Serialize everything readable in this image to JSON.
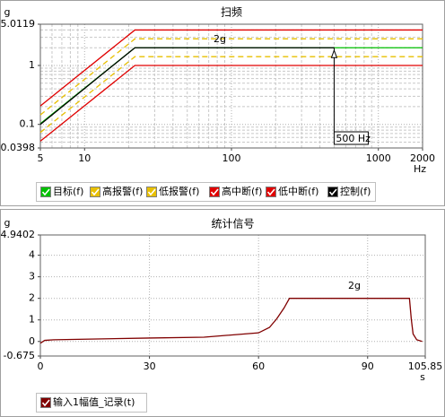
{
  "chart_data": [
    {
      "type": "line",
      "title": "扫频",
      "x_label": "Hz",
      "y_label": "g",
      "xscale": "log",
      "yscale": "log",
      "xlim": [
        5,
        2000
      ],
      "ylim": [
        0.0398,
        5.0119
      ],
      "xticks": [
        5,
        10,
        100,
        1000,
        2000
      ],
      "yticks": [
        0.0398,
        0.1,
        1,
        5.0119
      ],
      "xgrid": [
        6,
        7,
        8,
        9,
        20,
        30,
        40,
        50,
        60,
        70,
        80,
        90,
        200,
        300,
        400,
        500,
        600,
        700,
        800,
        900
      ],
      "ygrid": [
        0.05,
        0.06,
        0.07,
        0.08,
        0.09,
        0.2,
        0.3,
        0.4,
        0.5,
        0.6,
        0.7,
        0.8,
        0.9,
        2,
        3,
        4
      ],
      "grid": true,
      "series": [
        {
          "name": "目标(f)",
          "color": "#00c000",
          "x": [
            5,
            22,
            2000
          ],
          "values": [
            0.103,
            2,
            2
          ]
        },
        {
          "name": "高报警(f)",
          "color": "#e8c000",
          "dash": true,
          "x": [
            5,
            22,
            2000
          ],
          "values": [
            0.145,
            2.83,
            2.83
          ]
        },
        {
          "name": "低报警(f)",
          "color": "#e8c000",
          "dash": true,
          "x": [
            5,
            22,
            2000
          ],
          "values": [
            0.073,
            1.41,
            1.41
          ]
        },
        {
          "name": "高中断(f)",
          "color": "#e00000",
          "x": [
            5,
            22,
            2000
          ],
          "values": [
            0.206,
            4,
            4
          ]
        },
        {
          "name": "低中断(f)",
          "color": "#e00000",
          "x": [
            5,
            22,
            2000
          ],
          "values": [
            0.052,
            1,
            1
          ]
        },
        {
          "name": "控制(f)",
          "color": "#000000",
          "x": [
            5,
            22,
            500
          ],
          "values": [
            0.1,
            2,
            2
          ]
        }
      ],
      "annotations": [
        {
          "text": "2g"
        },
        {
          "text": "500 Hz",
          "x": 500
        }
      ]
    },
    {
      "type": "line",
      "title": "统计信号",
      "x_label": "s",
      "y_label": "g",
      "xlim": [
        0,
        105.85
      ],
      "ylim": [
        -0.675,
        4.9402
      ],
      "xticks": [
        0,
        30,
        60,
        90,
        105.85
      ],
      "yticks": [
        -0.675,
        0,
        1,
        2,
        3,
        4,
        4.9402
      ],
      "grid": true,
      "series": [
        {
          "name": "输入1幅值_记录(t)",
          "color": "#800000",
          "x": [
            0,
            1.2,
            3.7,
            30,
            45,
            60,
            63,
            65,
            67,
            68.5,
            101.5,
            102,
            102.5,
            103.5,
            105
          ],
          "values": [
            -0.08,
            0.05,
            0.08,
            0.16,
            0.2,
            0.4,
            0.65,
            1.05,
            1.55,
            2,
            2,
            1.05,
            0.35,
            0.08,
            0
          ]
        }
      ],
      "annotations": [
        {
          "text": "2g"
        }
      ]
    }
  ]
}
